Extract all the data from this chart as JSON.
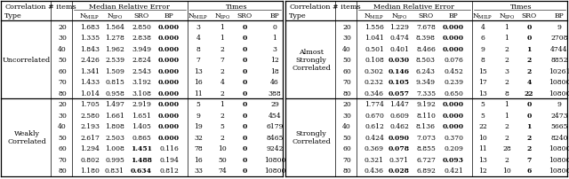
{
  "left_sections": [
    {
      "label": "Uncorrelated",
      "rows": [
        {
          "items": 20,
          "nMILP": "1.683",
          "nIPO": "1.564",
          "SRO": "2.850",
          "BP_err": "0.000",
          "tMILP": "3",
          "tIPO": "1",
          "tSRO": "0",
          "tBP": "0",
          "bold_err": 3,
          "bold_t": 2
        },
        {
          "items": 30,
          "nMILP": "1.335",
          "nIPO": "1.278",
          "SRO": "2.838",
          "BP_err": "0.000",
          "tMILP": "4",
          "tIPO": "1",
          "tSRO": "0",
          "tBP": "1",
          "bold_err": 3,
          "bold_t": 2
        },
        {
          "items": 40,
          "nMILP": "1.843",
          "nIPO": "1.962",
          "SRO": "3.949",
          "BP_err": "0.000",
          "tMILP": "8",
          "tIPO": "2",
          "tSRO": "0",
          "tBP": "3",
          "bold_err": 3,
          "bold_t": 2
        },
        {
          "items": 50,
          "nMILP": "2.426",
          "nIPO": "2.539",
          "SRO": "2.824",
          "BP_err": "0.000",
          "tMILP": "7",
          "tIPO": "7",
          "tSRO": "0",
          "tBP": "12",
          "bold_err": 3,
          "bold_t": 2
        },
        {
          "items": 60,
          "nMILP": "1.341",
          "nIPO": "1.509",
          "SRO": "2.543",
          "BP_err": "0.000",
          "tMILP": "13",
          "tIPO": "2",
          "tSRO": "0",
          "tBP": "18",
          "bold_err": 3,
          "bold_t": 2
        },
        {
          "items": 70,
          "nMILP": "1.433",
          "nIPO": "0.815",
          "SRO": "3.192",
          "BP_err": "0.000",
          "tMILP": "16",
          "tIPO": "4",
          "tSRO": "0",
          "tBP": "46",
          "bold_err": 3,
          "bold_t": 2
        },
        {
          "items": 80,
          "nMILP": "1.014",
          "nIPO": "0.958",
          "SRO": "3.108",
          "BP_err": "0.000",
          "tMILP": "11",
          "tIPO": "2",
          "tSRO": "0",
          "tBP": "388",
          "bold_err": 3,
          "bold_t": 2
        }
      ]
    },
    {
      "label": "Weakly\nCorrelated",
      "rows": [
        {
          "items": 20,
          "nMILP": "1.705",
          "nIPO": "1.497",
          "SRO": "2.919",
          "BP_err": "0.000",
          "tMILP": "5",
          "tIPO": "1",
          "tSRO": "0",
          "tBP": "29",
          "bold_err": 3,
          "bold_t": 2
        },
        {
          "items": 30,
          "nMILP": "2.580",
          "nIPO": "1.661",
          "SRO": "1.651",
          "BP_err": "0.000",
          "tMILP": "9",
          "tIPO": "2",
          "tSRO": "0",
          "tBP": "454",
          "bold_err": 3,
          "bold_t": 2
        },
        {
          "items": 40,
          "nMILP": "2.193",
          "nIPO": "1.808",
          "SRO": "1.405",
          "BP_err": "0.000",
          "tMILP": "19",
          "tIPO": "5",
          "tSRO": "0",
          "tBP": "6179",
          "bold_err": 3,
          "bold_t": 2
        },
        {
          "items": 50,
          "nMILP": "2.617",
          "nIPO": "2.503",
          "SRO": "0.865",
          "BP_err": "0.000",
          "tMILP": "32",
          "tIPO": "2",
          "tSRO": "0",
          "tBP": "8465",
          "bold_err": 3,
          "bold_t": 2
        },
        {
          "items": 60,
          "nMILP": "1.294",
          "nIPO": "1.008",
          "SRO": "1.451",
          "BP_err": "0.116",
          "tMILP": "78",
          "tIPO": "10",
          "tSRO": "0",
          "tBP": "9242",
          "bold_err": 2,
          "bold_t": 2
        },
        {
          "items": 70,
          "nMILP": "0.802",
          "nIPO": "0.995",
          "SRO": "1.488",
          "BP_err": "0.194",
          "tMILP": "16",
          "tIPO": "50",
          "tSRO": "0",
          "tBP": "10800",
          "bold_err": 2,
          "bold_t": 2
        },
        {
          "items": 80,
          "nMILP": "1.180",
          "nIPO": "0.831",
          "SRO": "0.634",
          "BP_err": "0.812",
          "tMILP": "33",
          "tIPO": "74",
          "tSRO": "0",
          "tBP": "10800",
          "bold_err": 2,
          "bold_t": 2
        }
      ]
    }
  ],
  "right_sections": [
    {
      "label": "Almost\nStrongly\nCorrelated",
      "rows": [
        {
          "items": 20,
          "nMILP": "1.556",
          "nIPO": "1.229",
          "SRO": "7.678",
          "BP_err": "0.000",
          "tMILP": "4",
          "tIPO": "1",
          "tSRO": "0",
          "tBP": "9",
          "bold_err": 3,
          "bold_t": 2
        },
        {
          "items": 30,
          "nMILP": "1.041",
          "nIPO": "0.474",
          "SRO": "8.398",
          "BP_err": "0.000",
          "tMILP": "6",
          "tIPO": "1",
          "tSRO": "0",
          "tBP": "2708",
          "bold_err": 3,
          "bold_t": 2
        },
        {
          "items": 40,
          "nMILP": "0.501",
          "nIPO": "0.401",
          "SRO": "8.466",
          "BP_err": "0.000",
          "tMILP": "9",
          "tIPO": "2",
          "tSRO": "1",
          "tBP": "4744",
          "bold_err": 3,
          "bold_t": 2
        },
        {
          "items": 50,
          "nMILP": "0.108",
          "nIPO": "0.030",
          "SRO": "8.503",
          "BP_err": "0.076",
          "tMILP": "8",
          "tIPO": "2",
          "tSRO": "2",
          "tBP": "8852",
          "bold_err": 1,
          "bold_t": 2
        },
        {
          "items": 60,
          "nMILP": "0.302",
          "nIPO": "0.146",
          "SRO": "6.243",
          "BP_err": "0.452",
          "tMILP": "15",
          "tIPO": "3",
          "tSRO": "2",
          "tBP": "10261",
          "bold_err": 1,
          "bold_t": 2
        },
        {
          "items": 70,
          "nMILP": "0.232",
          "nIPO": "0.105",
          "SRO": "9.349",
          "BP_err": "0.239",
          "tMILP": "17",
          "tIPO": "2",
          "tSRO": "4",
          "tBP": "10800",
          "bold_err": 1,
          "bold_t": 2
        },
        {
          "items": 80,
          "nMILP": "0.346",
          "nIPO": "0.057",
          "SRO": "7.335",
          "BP_err": "0.650",
          "tMILP": "13",
          "tIPO": "8",
          "tSRO": "22",
          "tBP": "10800",
          "bold_err": 1,
          "bold_t": 2
        }
      ]
    },
    {
      "label": "Strongly\nCorrelated",
      "rows": [
        {
          "items": 20,
          "nMILP": "1.774",
          "nIPO": "1.447",
          "SRO": "9.192",
          "BP_err": "0.000",
          "tMILP": "5",
          "tIPO": "1",
          "tSRO": "0",
          "tBP": "9",
          "bold_err": 3,
          "bold_t": 2
        },
        {
          "items": 30,
          "nMILP": "0.670",
          "nIPO": "0.609",
          "SRO": "8.110",
          "BP_err": "0.000",
          "tMILP": "5",
          "tIPO": "1",
          "tSRO": "0",
          "tBP": "2473",
          "bold_err": 3,
          "bold_t": 2
        },
        {
          "items": 40,
          "nMILP": "0.612",
          "nIPO": "0.462",
          "SRO": "8.136",
          "BP_err": "0.000",
          "tMILP": "22",
          "tIPO": "2",
          "tSRO": "1",
          "tBP": "5665",
          "bold_err": 3,
          "bold_t": 2
        },
        {
          "items": 50,
          "nMILP": "0.424",
          "nIPO": "0.090",
          "SRO": "7.073",
          "BP_err": "0.370",
          "tMILP": "10",
          "tIPO": "2",
          "tSRO": "2",
          "tBP": "8240",
          "bold_err": 1,
          "bold_t": 2
        },
        {
          "items": 60,
          "nMILP": "0.369",
          "nIPO": "0.078",
          "SRO": "8.855",
          "BP_err": "0.209",
          "tMILP": "11",
          "tIPO": "28",
          "tSRO": "2",
          "tBP": "10800",
          "bold_err": 1,
          "bold_t": 2
        },
        {
          "items": 70,
          "nMILP": "0.321",
          "nIPO": "0.371",
          "SRO": "6.727",
          "BP_err": "0.093",
          "tMILP": "13",
          "tIPO": "2",
          "tSRO": "7",
          "tBP": "10800",
          "bold_err": 3,
          "bold_t": 2
        },
        {
          "items": 80,
          "nMILP": "0.436",
          "nIPO": "0.028",
          "SRO": "6.892",
          "BP_err": "0.421",
          "tMILP": "12",
          "tIPO": "10",
          "tSRO": "6",
          "tBP": "10800",
          "bold_err": 1,
          "bold_t": 2
        }
      ]
    }
  ]
}
